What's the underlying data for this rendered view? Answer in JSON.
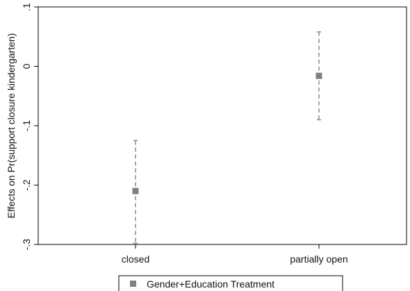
{
  "chart_data": {
    "type": "scatter",
    "categories": [
      "closed",
      "partially open"
    ],
    "series": [
      {
        "name": "Gender+Education Treatment",
        "values": [
          -0.21,
          -0.016
        ],
        "ci_low": [
          -0.298,
          -0.09
        ],
        "ci_high": [
          -0.125,
          0.058
        ]
      }
    ],
    "ylabel": "Effects on Pr(support closure kindergarten)",
    "xlabel": "",
    "ylim": [
      -0.3,
      0.1
    ],
    "yticks": [
      -0.3,
      -0.2,
      -0.1,
      0,
      0.1
    ],
    "ytick_labels": [
      "-.3",
      "-.2",
      "-.1",
      "0",
      ".1"
    ],
    "grid": false,
    "legend_position": "bottom",
    "colors": {
      "marker": "#808080",
      "ci": "#8a8a8a",
      "axis": "#000000"
    }
  }
}
